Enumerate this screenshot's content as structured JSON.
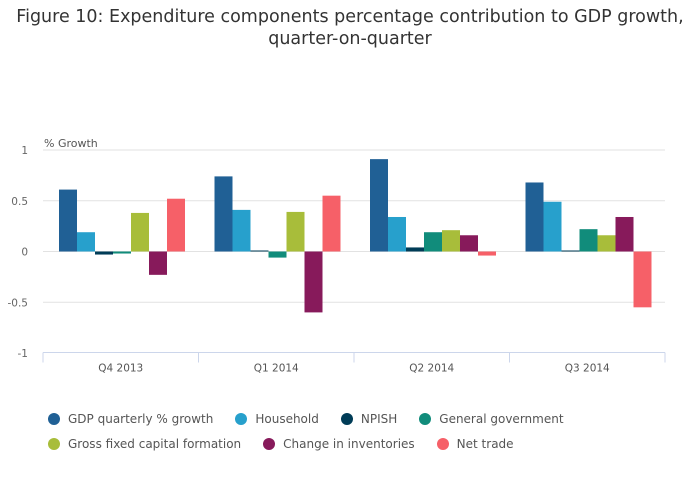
{
  "chart_data": {
    "type": "bar",
    "title": "Figure 10: Expenditure components percentage contribution to GDP growth, quarter-on-quarter",
    "xlabel": "",
    "ylabel": "% Growth",
    "ylim": [
      -1,
      1
    ],
    "yticks": [
      1,
      0.5,
      0,
      -0.5,
      -1
    ],
    "ytick_labels": [
      "1",
      "0.5",
      "0",
      "-0.5",
      "-1"
    ],
    "grid": true,
    "legend_position": "bottom",
    "categories": [
      "Q4 2013",
      "Q1 2014",
      "Q2 2014",
      "Q3 2014"
    ],
    "series": [
      {
        "name": "GDP quarterly % growth",
        "color": "#206095",
        "values": [
          0.61,
          0.74,
          0.91,
          0.68
        ]
      },
      {
        "name": "Household",
        "color": "#27a0cc",
        "values": [
          0.19,
          0.41,
          0.34,
          0.49
        ]
      },
      {
        "name": "NPISH",
        "color": "#003c57",
        "values": [
          -0.03,
          0.01,
          0.04,
          0.01
        ]
      },
      {
        "name": "General government",
        "color": "#118c7b",
        "values": [
          -0.02,
          -0.06,
          0.19,
          0.22
        ]
      },
      {
        "name": "Gross fixed capital formation",
        "color": "#a8bd3a",
        "values": [
          0.38,
          0.39,
          0.21,
          0.16
        ]
      },
      {
        "name": "Change in inventories",
        "color": "#871a5b",
        "values": [
          -0.23,
          -0.6,
          0.16,
          0.34
        ]
      },
      {
        "name": "Net trade",
        "color": "#f66068",
        "values": [
          0.52,
          0.55,
          -0.04,
          -0.55
        ]
      }
    ]
  }
}
